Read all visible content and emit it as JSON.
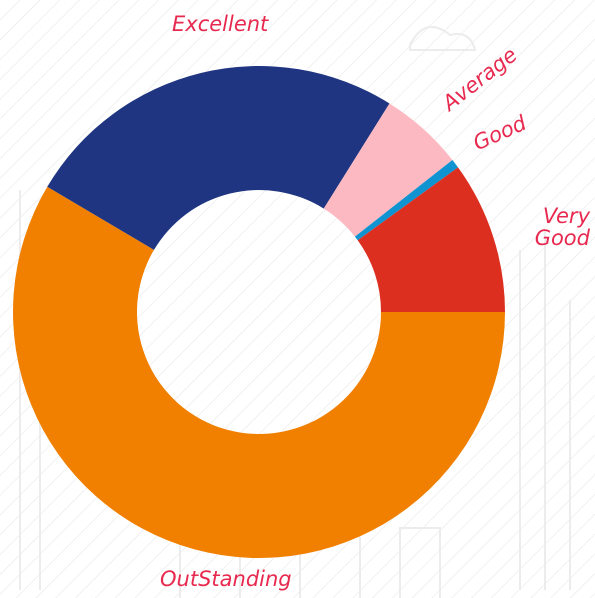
{
  "chart_data": {
    "type": "donut",
    "categories": [
      "OutStanding",
      "Excellent",
      "Average",
      "Good",
      "Very Good"
    ],
    "values": [
      58.5,
      25.4,
      5.5,
      0.6,
      10.0
    ],
    "colors": [
      "#f18000",
      "#1f3581",
      "#fdb9c1",
      "#0f93d1",
      "#dd2f20"
    ]
  }
}
